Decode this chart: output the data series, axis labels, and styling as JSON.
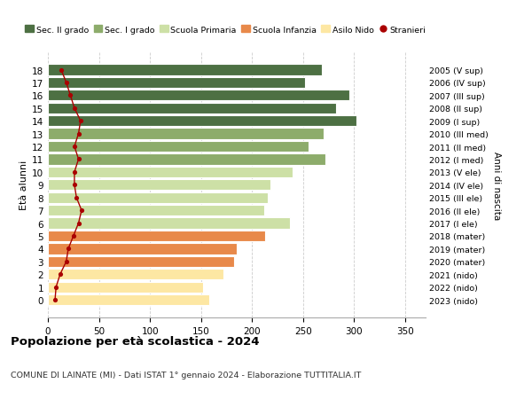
{
  "ages": [
    0,
    1,
    2,
    3,
    4,
    5,
    6,
    7,
    8,
    9,
    10,
    11,
    12,
    13,
    14,
    15,
    16,
    17,
    18
  ],
  "bar_values": [
    158,
    152,
    172,
    182,
    185,
    213,
    237,
    212,
    215,
    218,
    240,
    272,
    255,
    270,
    302,
    282,
    295,
    252,
    268
  ],
  "right_labels": [
    "2023 (nido)",
    "2022 (nido)",
    "2021 (nido)",
    "2020 (mater)",
    "2019 (mater)",
    "2018 (mater)",
    "2017 (I ele)",
    "2016 (II ele)",
    "2015 (III ele)",
    "2014 (IV ele)",
    "2013 (V ele)",
    "2012 (I med)",
    "2011 (II med)",
    "2010 (III med)",
    "2009 (I sup)",
    "2008 (II sup)",
    "2007 (III sup)",
    "2006 (IV sup)",
    "2005 (V sup)"
  ],
  "bar_colors": [
    "#fde7a3",
    "#fde7a3",
    "#fde7a3",
    "#e8894a",
    "#e8894a",
    "#e8894a",
    "#cde0a6",
    "#cde0a6",
    "#cde0a6",
    "#cde0a6",
    "#cde0a6",
    "#8dac6b",
    "#8dac6b",
    "#8dac6b",
    "#4d7043",
    "#4d7043",
    "#4d7043",
    "#4d7043",
    "#4d7043"
  ],
  "legend_labels": [
    "Sec. II grado",
    "Sec. I grado",
    "Scuola Primaria",
    "Scuola Infanzia",
    "Asilo Nido",
    "Stranieri"
  ],
  "legend_colors": [
    "#4d7043",
    "#8dac6b",
    "#cde0a6",
    "#e8894a",
    "#fde7a3",
    "#aa0000"
  ],
  "title": "Popolazione per età scolastica - 2024",
  "subtitle": "COMUNE DI LAINATE (MI) - Dati ISTAT 1° gennaio 2024 - Elaborazione TUTTITALIA.IT",
  "ylabel": "Età alunni",
  "right_ylabel": "Anni di nascita",
  "xlim": [
    0,
    370
  ],
  "xticks": [
    0,
    50,
    100,
    150,
    200,
    250,
    300,
    350
  ],
  "bg_color": "#ffffff",
  "grid_color": "#cccccc",
  "stranieri_color": "#aa0000",
  "stranieri_x": [
    7,
    8,
    12,
    18,
    20,
    25,
    30,
    33,
    28,
    26,
    26,
    30,
    26,
    30,
    32,
    26,
    22,
    18,
    13
  ]
}
